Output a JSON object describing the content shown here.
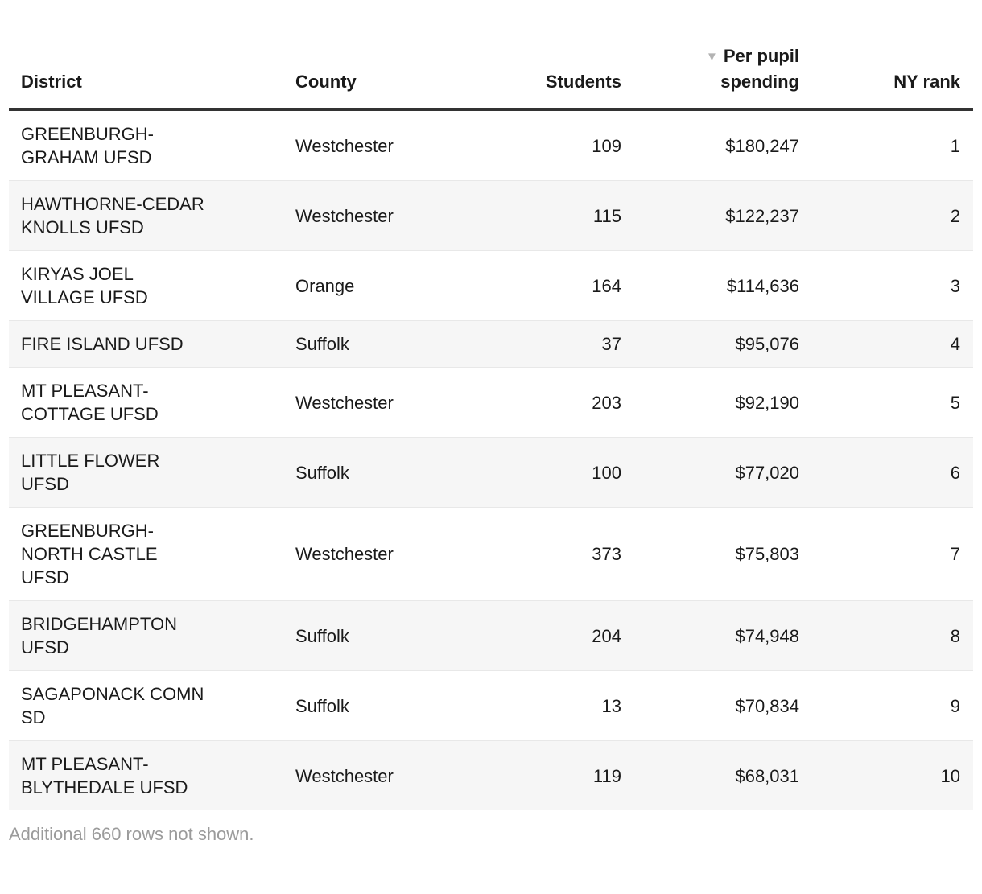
{
  "table": {
    "columns": [
      {
        "id": "district",
        "label": "District",
        "align": "left",
        "sorted": false
      },
      {
        "id": "county",
        "label": "County",
        "align": "left",
        "sorted": false
      },
      {
        "id": "students",
        "label": "Students",
        "align": "right",
        "sorted": false
      },
      {
        "id": "spending",
        "label": "Per pupil spending",
        "align": "right",
        "sorted": true,
        "sort_icon": "▼",
        "sort_direction": "desc"
      },
      {
        "id": "rank",
        "label": "NY rank",
        "align": "right",
        "sorted": false
      }
    ],
    "rows": [
      {
        "district": "GREENBURGH-\nGRAHAM UFSD",
        "county": "Westchester",
        "students": "109",
        "spending": "$180,247",
        "rank": "1"
      },
      {
        "district": "HAWTHORNE-CEDAR\nKNOLLS UFSD",
        "county": "Westchester",
        "students": "115",
        "spending": "$122,237",
        "rank": "2"
      },
      {
        "district": "KIRYAS JOEL\nVILLAGE UFSD",
        "county": "Orange",
        "students": "164",
        "spending": "$114,636",
        "rank": "3"
      },
      {
        "district": "FIRE ISLAND UFSD",
        "county": "Suffolk",
        "students": "37",
        "spending": "$95,076",
        "rank": "4"
      },
      {
        "district": "MT PLEASANT-\nCOTTAGE UFSD",
        "county": "Westchester",
        "students": "203",
        "spending": "$92,190",
        "rank": "5"
      },
      {
        "district": "LITTLE FLOWER\nUFSD",
        "county": "Suffolk",
        "students": "100",
        "spending": "$77,020",
        "rank": "6"
      },
      {
        "district": "GREENBURGH-\nNORTH CASTLE\nUFSD",
        "county": "Westchester",
        "students": "373",
        "spending": "$75,803",
        "rank": "7"
      },
      {
        "district": "BRIDGEHAMPTON\nUFSD",
        "county": "Suffolk",
        "students": "204",
        "spending": "$74,948",
        "rank": "8"
      },
      {
        "district": "SAGAPONACK COMN\nSD",
        "county": "Suffolk",
        "students": "13",
        "spending": "$70,834",
        "rank": "9"
      },
      {
        "district": "MT PLEASANT-\nBLYTHEDALE UFSD",
        "county": "Westchester",
        "students": "119",
        "spending": "$68,031",
        "rank": "10"
      }
    ],
    "footer_note": "Additional 660 rows not shown."
  },
  "colors": {
    "text": "#1a1a1a",
    "header_rule": "#333333",
    "row_separator": "#e8e8e8",
    "alt_row_background": "#f6f6f6",
    "footer_text": "#9b9b9b",
    "sort_icon": "#b3b3b3"
  },
  "chart_data": {
    "type": "table",
    "columns": [
      "District",
      "County",
      "Students",
      "Per pupil spending",
      "NY rank"
    ],
    "rows": [
      [
        "GREENBURGH-GRAHAM UFSD",
        "Westchester",
        109,
        180247,
        1
      ],
      [
        "HAWTHORNE-CEDAR KNOLLS UFSD",
        "Westchester",
        115,
        122237,
        2
      ],
      [
        "KIRYAS JOEL VILLAGE UFSD",
        "Orange",
        164,
        114636,
        3
      ],
      [
        "FIRE ISLAND UFSD",
        "Suffolk",
        37,
        95076,
        4
      ],
      [
        "MT PLEASANT-COTTAGE UFSD",
        "Westchester",
        203,
        92190,
        5
      ],
      [
        "LITTLE FLOWER UFSD",
        "Suffolk",
        100,
        77020,
        6
      ],
      [
        "GREENBURGH-NORTH CASTLE UFSD",
        "Westchester",
        373,
        75803,
        7
      ],
      [
        "BRIDGEHAMPTON UFSD",
        "Suffolk",
        204,
        74948,
        8
      ],
      [
        "SAGAPONACK COMN SD",
        "Suffolk",
        13,
        70834,
        9
      ],
      [
        "MT PLEASANT-BLYTHEDALE UFSD",
        "Westchester",
        119,
        68031,
        10
      ]
    ],
    "sort": {
      "column": "Per pupil spending",
      "direction": "desc"
    },
    "footnote": "Additional 660 rows not shown."
  }
}
